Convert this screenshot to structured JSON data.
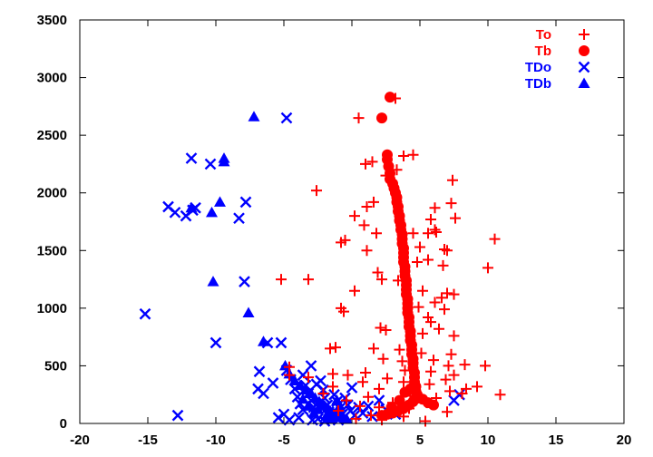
{
  "chart_data": {
    "type": "scatter",
    "title": "",
    "xlabel": "",
    "ylabel": "",
    "xlim": [
      -20,
      20
    ],
    "ylim": [
      0,
      3500
    ],
    "x_ticks": [
      "-20",
      "-15",
      "-10",
      "-5",
      "0",
      "5",
      "10",
      "15",
      "20"
    ],
    "y_ticks": [
      "0",
      "500",
      "1000",
      "1500",
      "2000",
      "2500",
      "3000",
      "3500"
    ],
    "grid": false,
    "legend_position": "top-right",
    "series": [
      {
        "name": "To",
        "color": "#ff0000",
        "marker": "plus",
        "points": [
          [
            3.2,
            2820
          ],
          [
            0.5,
            2650
          ],
          [
            3.8,
            2320
          ],
          [
            4.5,
            2330
          ],
          [
            3.3,
            2200
          ],
          [
            1.0,
            2250
          ],
          [
            1.5,
            2270
          ],
          [
            2.5,
            2150
          ],
          [
            -2.6,
            2020
          ],
          [
            7.4,
            2110
          ],
          [
            1.6,
            1920
          ],
          [
            1.1,
            1880
          ],
          [
            7.3,
            1910
          ],
          [
            6.1,
            1870
          ],
          [
            7.6,
            1780
          ],
          [
            5.8,
            1770
          ],
          [
            0.2,
            1800
          ],
          [
            0.9,
            1720
          ],
          [
            6.1,
            1680
          ],
          [
            6.2,
            1660
          ],
          [
            5.6,
            1650
          ],
          [
            4.5,
            1650
          ],
          [
            1.8,
            1650
          ],
          [
            -0.8,
            1570
          ],
          [
            -0.5,
            1590
          ],
          [
            1.1,
            1500
          ],
          [
            10.5,
            1600
          ],
          [
            5.0,
            1530
          ],
          [
            6.8,
            1510
          ],
          [
            7.0,
            1500
          ],
          [
            10.0,
            1350
          ],
          [
            5.6,
            1420
          ],
          [
            4.8,
            1400
          ],
          [
            6.7,
            1370
          ],
          [
            1.9,
            1310
          ],
          [
            2.2,
            1250
          ],
          [
            -5.2,
            1250
          ],
          [
            -3.2,
            1250
          ],
          [
            3.4,
            1240
          ],
          [
            5.2,
            1150
          ],
          [
            0.2,
            1150
          ],
          [
            7.0,
            1130
          ],
          [
            7.5,
            1120
          ],
          [
            6.6,
            1090
          ],
          [
            6.1,
            1050
          ],
          [
            4.9,
            1010
          ],
          [
            6.8,
            990
          ],
          [
            -0.8,
            1000
          ],
          [
            -0.6,
            970
          ],
          [
            5.6,
            920
          ],
          [
            5.8,
            880
          ],
          [
            2.1,
            830
          ],
          [
            6.4,
            820
          ],
          [
            2.5,
            810
          ],
          [
            5.2,
            780
          ],
          [
            7.5,
            760
          ],
          [
            -1.2,
            660
          ],
          [
            -1.6,
            650
          ],
          [
            1.6,
            650
          ],
          [
            3.5,
            640
          ],
          [
            5.1,
            610
          ],
          [
            7.3,
            600
          ],
          [
            2.3,
            560
          ],
          [
            6.0,
            550
          ],
          [
            3.7,
            540
          ],
          [
            4.5,
            530
          ],
          [
            8.3,
            510
          ],
          [
            7.1,
            500
          ],
          [
            9.8,
            500
          ],
          [
            -4.6,
            490
          ],
          [
            -1.4,
            430
          ],
          [
            1.0,
            440
          ],
          [
            3.9,
            460
          ],
          [
            5.8,
            450
          ],
          [
            -4.6,
            420
          ],
          [
            7.5,
            420
          ],
          [
            -3.2,
            400
          ],
          [
            -0.3,
            420
          ],
          [
            2.6,
            390
          ],
          [
            6.9,
            380
          ],
          [
            0.8,
            360
          ],
          [
            3.8,
            360
          ],
          [
            5.7,
            340
          ],
          [
            9.2,
            320
          ],
          [
            -1.4,
            320
          ],
          [
            8.4,
            300
          ],
          [
            2.0,
            300
          ],
          [
            7.2,
            280
          ],
          [
            -2.1,
            260
          ],
          [
            10.9,
            250
          ],
          [
            8.1,
            260
          ],
          [
            4.3,
            240
          ],
          [
            6.2,
            220
          ],
          [
            1.2,
            230
          ],
          [
            -0.4,
            200
          ],
          [
            3.0,
            180
          ],
          [
            5.5,
            180
          ],
          [
            0.6,
            150
          ],
          [
            2.0,
            140
          ],
          [
            4.2,
            130
          ],
          [
            -1.0,
            110
          ],
          [
            7.0,
            100
          ],
          [
            2.6,
            90
          ],
          [
            1.4,
            70
          ],
          [
            3.8,
            60
          ],
          [
            0.3,
            40
          ],
          [
            2.2,
            30
          ],
          [
            5.4,
            20
          ]
        ]
      },
      {
        "name": "Tb",
        "color": "#ff0000",
        "marker": "circle",
        "points": [
          [
            2.8,
            2830
          ],
          [
            2.2,
            2650
          ],
          [
            2.6,
            2330
          ],
          [
            2.6,
            2290
          ],
          [
            2.7,
            2230
          ],
          [
            2.8,
            2170
          ],
          [
            2.8,
            2120
          ],
          [
            3.0,
            2080
          ],
          [
            3.1,
            2040
          ],
          [
            3.2,
            2000
          ],
          [
            3.3,
            1960
          ],
          [
            3.3,
            1920
          ],
          [
            3.4,
            1880
          ],
          [
            3.4,
            1840
          ],
          [
            3.5,
            1800
          ],
          [
            3.5,
            1760
          ],
          [
            3.6,
            1720
          ],
          [
            3.6,
            1680
          ],
          [
            3.7,
            1640
          ],
          [
            3.7,
            1600
          ],
          [
            3.7,
            1560
          ],
          [
            3.8,
            1520
          ],
          [
            3.8,
            1480
          ],
          [
            3.8,
            1440
          ],
          [
            3.8,
            1400
          ],
          [
            3.9,
            1360
          ],
          [
            3.9,
            1320
          ],
          [
            3.9,
            1280
          ],
          [
            4.0,
            1240
          ],
          [
            4.0,
            1200
          ],
          [
            4.0,
            1160
          ],
          [
            4.0,
            1120
          ],
          [
            4.1,
            1080
          ],
          [
            4.1,
            1040
          ],
          [
            4.1,
            1000
          ],
          [
            4.1,
            960
          ],
          [
            4.2,
            920
          ],
          [
            4.2,
            880
          ],
          [
            4.2,
            840
          ],
          [
            4.3,
            800
          ],
          [
            4.3,
            760
          ],
          [
            4.3,
            720
          ],
          [
            4.4,
            680
          ],
          [
            4.4,
            640
          ],
          [
            4.4,
            600
          ],
          [
            4.5,
            560
          ],
          [
            4.5,
            520
          ],
          [
            4.5,
            480
          ],
          [
            4.6,
            440
          ],
          [
            4.6,
            400
          ],
          [
            4.6,
            360
          ],
          [
            4.7,
            320
          ],
          [
            4.7,
            280
          ],
          [
            4.8,
            250
          ],
          [
            4.9,
            220
          ],
          [
            4.5,
            190
          ],
          [
            4.2,
            160
          ],
          [
            3.8,
            130
          ],
          [
            3.4,
            110
          ],
          [
            3.0,
            90
          ],
          [
            2.6,
            80
          ],
          [
            2.2,
            70
          ],
          [
            5.2,
            210
          ],
          [
            5.6,
            180
          ],
          [
            6.0,
            160
          ],
          [
            3.9,
            270
          ],
          [
            4.3,
            300
          ],
          [
            2.9,
            140
          ],
          [
            3.5,
            200
          ]
        ]
      },
      {
        "name": "TDo",
        "color": "#0000ff",
        "marker": "x",
        "points": [
          [
            -4.8,
            2650
          ],
          [
            -11.8,
            2300
          ],
          [
            -10.4,
            2250
          ],
          [
            -13.5,
            1880
          ],
          [
            -13.0,
            1830
          ],
          [
            -12.2,
            1800
          ],
          [
            -11.5,
            1870
          ],
          [
            -11.7,
            1850
          ],
          [
            -7.8,
            1920
          ],
          [
            -8.3,
            1780
          ],
          [
            -15.2,
            950
          ],
          [
            -7.9,
            1230
          ],
          [
            -10.0,
            700
          ],
          [
            -6.2,
            700
          ],
          [
            -5.2,
            700
          ],
          [
            -6.8,
            450
          ],
          [
            -3.0,
            500
          ],
          [
            -12.8,
            70
          ],
          [
            -6.9,
            300
          ],
          [
            -6.5,
            260
          ],
          [
            -5.8,
            350
          ],
          [
            -5.0,
            80
          ],
          [
            -4.8,
            460
          ],
          [
            -4.5,
            380
          ],
          [
            -4.2,
            300
          ],
          [
            -4.0,
            230
          ],
          [
            -3.8,
            170
          ],
          [
            -3.6,
            120
          ],
          [
            -3.4,
            330
          ],
          [
            -3.2,
            260
          ],
          [
            -3.0,
            200
          ],
          [
            -2.8,
            140
          ],
          [
            -2.7,
            80
          ],
          [
            -2.5,
            40
          ],
          [
            -2.3,
            370
          ],
          [
            -2.1,
            290
          ],
          [
            -2.0,
            220
          ],
          [
            -1.8,
            160
          ],
          [
            -1.7,
            100
          ],
          [
            -1.5,
            60
          ],
          [
            -1.3,
            250
          ],
          [
            -1.1,
            190
          ],
          [
            -0.9,
            130
          ],
          [
            -0.7,
            80
          ],
          [
            -0.5,
            220
          ],
          [
            -0.3,
            160
          ],
          [
            -0.1,
            110
          ],
          [
            0.2,
            70
          ],
          [
            0.5,
            140
          ],
          [
            0.8,
            90
          ],
          [
            1.2,
            150
          ],
          [
            1.5,
            60
          ],
          [
            2.0,
            200
          ],
          [
            2.5,
            120
          ],
          [
            3.2,
            80
          ],
          [
            -5.4,
            50
          ],
          [
            -4.6,
            30
          ],
          [
            -3.9,
            50
          ],
          [
            -2.9,
            30
          ],
          [
            -2.0,
            20
          ],
          [
            -1.0,
            30
          ],
          [
            0.0,
            310
          ],
          [
            7.5,
            200
          ],
          [
            7.9,
            250
          ],
          [
            -3.6,
            420
          ],
          [
            -2.6,
            340
          ]
        ]
      },
      {
        "name": "TDb",
        "color": "#0000ff",
        "marker": "triangle",
        "points": [
          [
            -7.2,
            2660
          ],
          [
            -9.4,
            2300
          ],
          [
            -9.4,
            2270
          ],
          [
            -9.7,
            1920
          ],
          [
            -10.3,
            1830
          ],
          [
            -11.8,
            1870
          ],
          [
            -10.2,
            1230
          ],
          [
            -7.6,
            960
          ],
          [
            -6.5,
            710
          ],
          [
            -4.9,
            500
          ],
          [
            -4.6,
            430
          ],
          [
            -4.2,
            370
          ],
          [
            -3.8,
            330
          ],
          [
            -3.4,
            290
          ],
          [
            -3.0,
            260
          ],
          [
            -2.7,
            220
          ],
          [
            -2.4,
            190
          ],
          [
            -2.2,
            170
          ],
          [
            -2.0,
            150
          ],
          [
            -1.8,
            130
          ],
          [
            -1.6,
            110
          ],
          [
            -1.4,
            100
          ],
          [
            -1.2,
            80
          ],
          [
            -1.0,
            70
          ],
          [
            -0.8,
            60
          ],
          [
            -0.6,
            50
          ],
          [
            -0.4,
            40
          ],
          [
            -2.5,
            120
          ],
          [
            -3.2,
            150
          ],
          [
            -1.9,
            60
          ],
          [
            -1.5,
            40
          ],
          [
            -2.8,
            90
          ],
          [
            -0.9,
            150
          ],
          [
            -1.1,
            200
          ],
          [
            -3.6,
            210
          ]
        ]
      }
    ]
  }
}
